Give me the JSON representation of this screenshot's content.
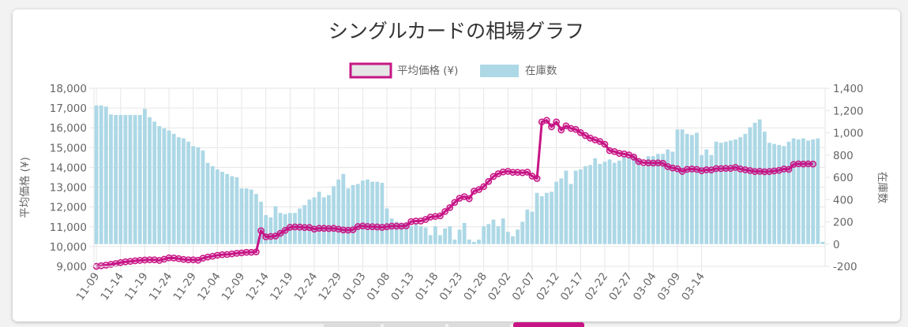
{
  "tabs": {
    "active_index": 3,
    "count": 4
  },
  "colors": {
    "line": "#c71585",
    "bar": "#add8e6",
    "grid": "#e6e6e6",
    "text": "#666666",
    "title": "#333333"
  },
  "chart_data": {
    "type": "bar",
    "title": "シングルカードの相場グラフ",
    "legend": {
      "position": "top",
      "entries": [
        "平均価格 (¥)",
        "在庫数"
      ]
    },
    "grid": true,
    "y_left": {
      "label": "平均価格 (¥)",
      "min": 9000,
      "max": 18000,
      "step": 1000,
      "ticks": [
        "9,000",
        "10,000",
        "11,000",
        "12,000",
        "13,000",
        "14,000",
        "15,000",
        "16,000",
        "17,000",
        "18,000"
      ]
    },
    "y_right": {
      "label": "在庫数",
      "min": -200,
      "max": 1400,
      "step": 200,
      "ticks": [
        "-200",
        "0",
        "200",
        "400",
        "600",
        "800",
        "1,000",
        "1,200",
        "1,400"
      ]
    },
    "x_tick_labels": [
      "11-09",
      "11-14",
      "11-19",
      "11-24",
      "11-29",
      "12-04",
      "12-09",
      "12-14",
      "12-19",
      "12-24",
      "12-29",
      "01-03",
      "01-08",
      "01-13",
      "01-18",
      "01-23",
      "01-28",
      "02-02",
      "02-07",
      "02-12",
      "02-17",
      "02-22",
      "02-27",
      "03-04",
      "03-09",
      "03-14"
    ],
    "series": [
      {
        "name": "平均価格 (¥)",
        "type": "line",
        "axis": "left",
        "values": [
          9000,
          9030,
          9060,
          9100,
          9140,
          9190,
          9230,
          9250,
          9280,
          9300,
          9320,
          9330,
          9330,
          9300,
          9360,
          9430,
          9420,
          9390,
          9350,
          9330,
          9330,
          9310,
          9410,
          9470,
          9510,
          9560,
          9590,
          9600,
          9630,
          9660,
          9680,
          9710,
          9710,
          9730,
          10800,
          10490,
          10510,
          10530,
          10670,
          10820,
          10970,
          10990,
          10980,
          10960,
          10960,
          10880,
          10920,
          10920,
          10910,
          10920,
          10880,
          10840,
          10830,
          10850,
          11010,
          11040,
          11010,
          11000,
          10990,
          10970,
          11000,
          11030,
          11030,
          11030,
          11050,
          11260,
          11290,
          11290,
          11370,
          11490,
          11520,
          11550,
          11770,
          11970,
          12230,
          12440,
          12520,
          12420,
          12800,
          12880,
          13030,
          13290,
          13540,
          13680,
          13770,
          13800,
          13750,
          13750,
          13730,
          13760,
          13560,
          13440,
          16300,
          16380,
          16050,
          16300,
          15890,
          16100,
          15970,
          15920,
          15760,
          15610,
          15480,
          15390,
          15310,
          15170,
          14850,
          14800,
          14710,
          14680,
          14630,
          14520,
          14300,
          14240,
          14230,
          14220,
          14230,
          14210,
          14040,
          13970,
          13930,
          13800,
          13900,
          13920,
          13900,
          13830,
          13880,
          13870,
          13940,
          13940,
          13950,
          13950,
          14000,
          13920,
          13880,
          13840,
          13790,
          13800,
          13780,
          13790,
          13820,
          13850,
          13920,
          13900,
          14150,
          14180,
          14170,
          14180,
          14170
        ]
      },
      {
        "name": "在庫数",
        "type": "bar",
        "axis": "right",
        "values": [
          1245,
          1245,
          1235,
          1165,
          1160,
          1160,
          1160,
          1160,
          1160,
          1160,
          1215,
          1140,
          1100,
          1060,
          1040,
          1020,
          990,
          960,
          950,
          920,
          880,
          870,
          840,
          730,
          700,
          670,
          650,
          630,
          610,
          600,
          500,
          500,
          490,
          450,
          380,
          260,
          240,
          340,
          280,
          270,
          280,
          280,
          320,
          350,
          400,
          420,
          470,
          420,
          440,
          520,
          580,
          630,
          500,
          530,
          540,
          570,
          580,
          560,
          560,
          550,
          320,
          230,
          200,
          180,
          190,
          160,
          180,
          160,
          150,
          80,
          160,
          80,
          140,
          160,
          40,
          130,
          190,
          40,
          20,
          40,
          160,
          180,
          220,
          160,
          230,
          110,
          70,
          130,
          200,
          310,
          290,
          460,
          430,
          460,
          470,
          560,
          590,
          660,
          540,
          660,
          670,
          700,
          710,
          770,
          720,
          740,
          760,
          730,
          750,
          790,
          770,
          800,
          760,
          700,
          790,
          790,
          810,
          810,
          850,
          830,
          1030,
          1030,
          990,
          980,
          1000,
          800,
          850,
          800,
          920,
          910,
          920,
          930,
          940,
          960,
          990,
          1050,
          1090,
          1120,
          1010,
          910,
          900,
          890,
          880,
          920,
          950,
          940,
          950,
          930,
          940,
          950,
          20
        ]
      }
    ]
  }
}
